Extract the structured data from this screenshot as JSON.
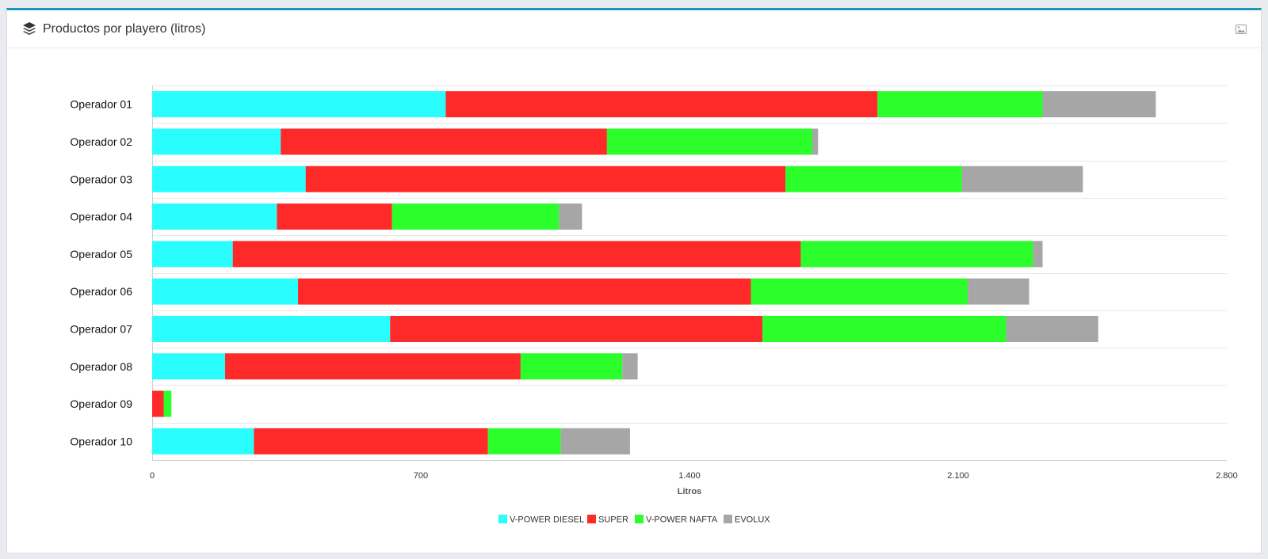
{
  "panel": {
    "title": "Productos por playero (litros)",
    "title_icon": "layers-icon",
    "export_icon": "image-icon"
  },
  "chart_data": {
    "type": "bar",
    "orientation": "horizontal",
    "stacked": true,
    "categories": [
      "Operador 01",
      "Operador 02",
      "Operador 03",
      "Operador 04",
      "Operador 05",
      "Operador 06",
      "Operador 07",
      "Operador 08",
      "Operador 09",
      "Operador 10"
    ],
    "series": [
      {
        "name": "V-POWER DIESEL",
        "color": "#29fdfd",
        "values": [
          765,
          335,
          400,
          325,
          210,
          380,
          620,
          190,
          0,
          265
        ]
      },
      {
        "name": "SUPER",
        "color": "#fe2a2a",
        "values": [
          1125,
          850,
          1250,
          300,
          1480,
          1180,
          970,
          770,
          30,
          610
        ]
      },
      {
        "name": "V-POWER NAFTA",
        "color": "#2cfe2c",
        "values": [
          430,
          535,
          460,
          435,
          605,
          565,
          635,
          265,
          20,
          190
        ]
      },
      {
        "name": "EVOLUX",
        "color": "#a6a6a6",
        "values": [
          295,
          15,
          315,
          60,
          25,
          160,
          240,
          40,
          0,
          180
        ]
      }
    ],
    "xlabel": "Litros",
    "ylabel": "",
    "xlim": [
      0,
      2800
    ],
    "xticks": [
      0,
      700,
      1400,
      2100,
      2800
    ],
    "xtick_labels": [
      "0",
      "700",
      "1.400",
      "2.100",
      "2.800"
    ],
    "grid": true,
    "legend": "bottom-center"
  }
}
